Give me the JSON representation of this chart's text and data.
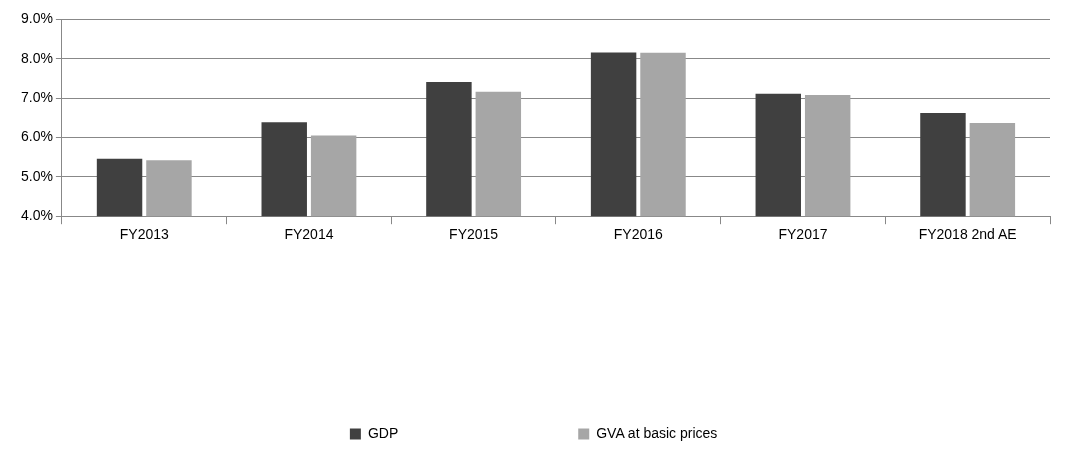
{
  "chart_data": {
    "type": "bar",
    "categories": [
      "FY2013",
      "FY2014",
      "FY2015",
      "FY2016",
      "FY2017",
      "FY2018 2nd AE"
    ],
    "series": [
      {
        "name": "GDP",
        "color": "#404040",
        "values": [
          5.46,
          6.39,
          7.41,
          8.16,
          7.11,
          6.62
        ]
      },
      {
        "name": "GVA at basic prices",
        "color": "#a6a6a6",
        "values": [
          5.42,
          6.05,
          7.16,
          8.15,
          7.08,
          6.37
        ]
      }
    ],
    "ylim": [
      4,
      9
    ],
    "yticks": [
      {
        "value": 4,
        "label": "4.0%"
      },
      {
        "value": 5,
        "label": "5.0%"
      },
      {
        "value": 6,
        "label": "6.0%"
      },
      {
        "value": 7,
        "label": "7.0%"
      },
      {
        "value": 8,
        "label": "8.0%"
      },
      {
        "value": 9,
        "label": "9.0%"
      }
    ],
    "grid": "y",
    "legend": "bottom"
  }
}
